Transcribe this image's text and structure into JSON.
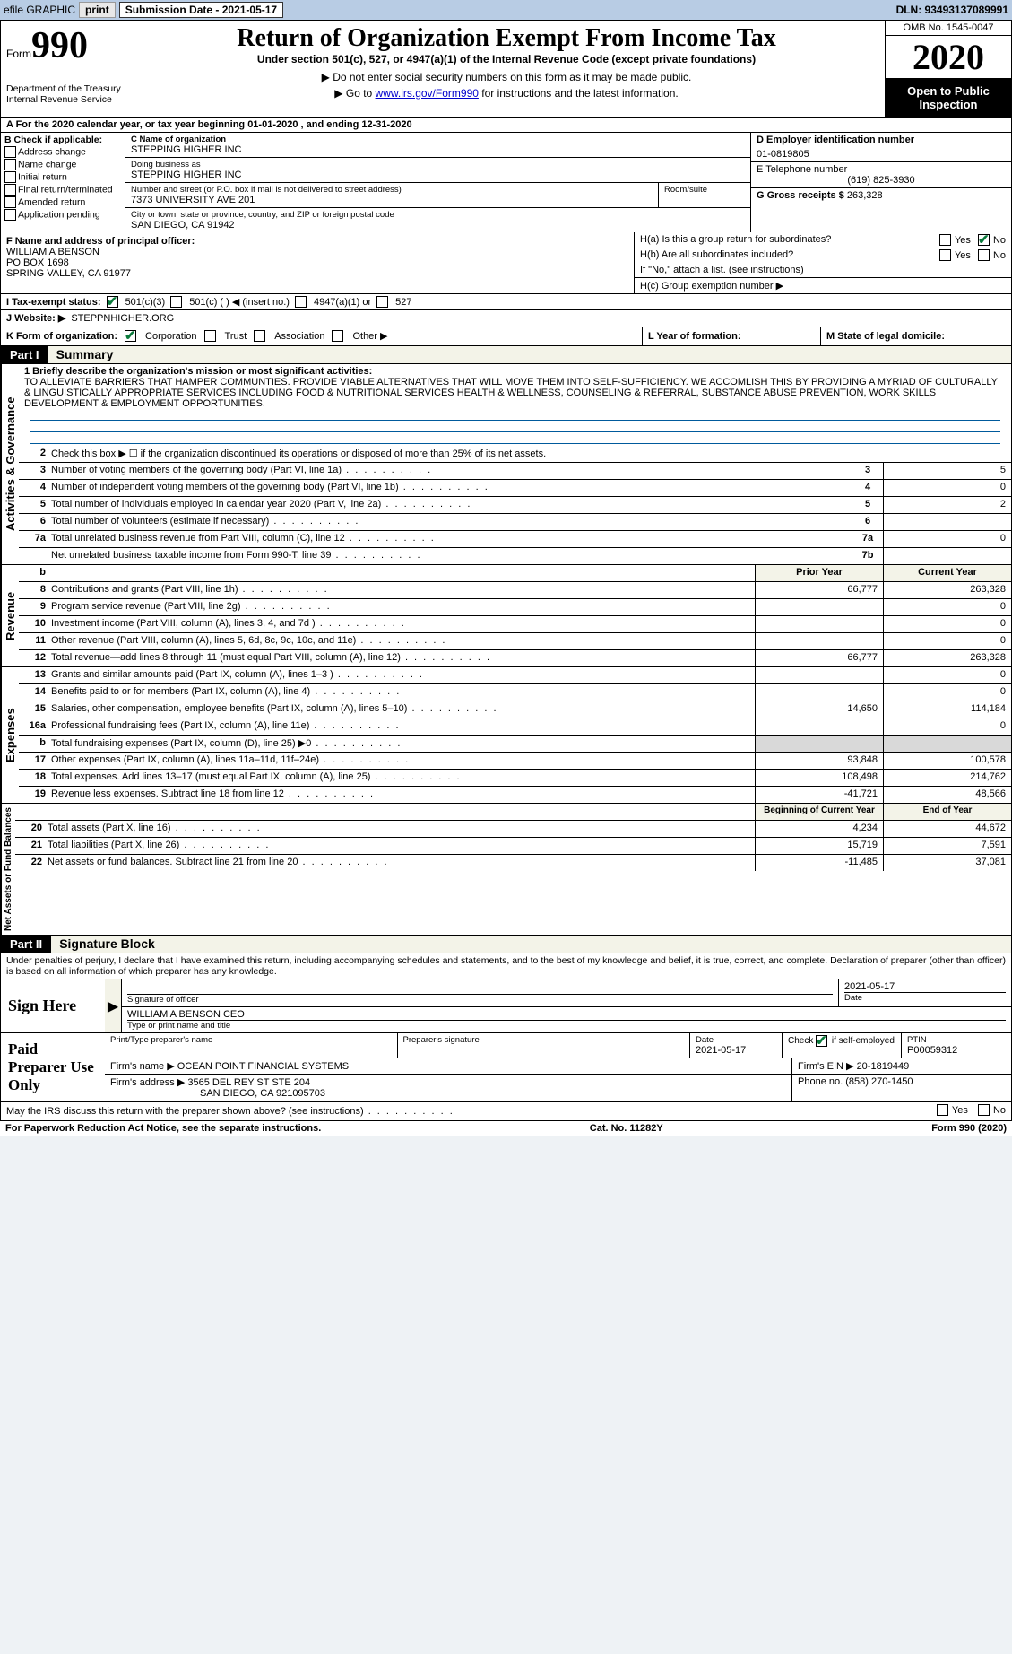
{
  "topbar": {
    "efile_label": "efile GRAPHIC",
    "print_btn": "print",
    "submission_label": "Submission Date - 2021-05-17",
    "dln_label": "DLN: 93493137089991"
  },
  "header": {
    "form_label": "Form",
    "form_number": "990",
    "dept": "Department of the Treasury\nInternal Revenue Service",
    "title": "Return of Organization Exempt From Income Tax",
    "subtitle": "Under section 501(c), 527, or 4947(a)(1) of the Internal Revenue Code (except private foundations)",
    "note1": "▶ Do not enter social security numbers on this form as it may be made public.",
    "note2_pre": "▶ Go to ",
    "note2_link": "www.irs.gov/Form990",
    "note2_post": " for instructions and the latest information.",
    "omb": "OMB No. 1545-0047",
    "year": "2020",
    "inspection": "Open to Public Inspection"
  },
  "row_a": "A  For the 2020 calendar year, or tax year beginning 01-01-2020    , and ending 12-31-2020",
  "section_b": {
    "title": "B Check if applicable:",
    "items": [
      "Address change",
      "Name change",
      "Initial return",
      "Final return/terminated",
      "Amended return",
      "Application pending"
    ]
  },
  "section_c": {
    "name_label": "C Name of organization",
    "name": "STEPPING HIGHER INC",
    "dba_label": "Doing business as",
    "dba": "STEPPING HIGHER INC",
    "street_label": "Number and street (or P.O. box if mail is not delivered to street address)",
    "street": "7373 UNIVERSITY AVE 201",
    "room_label": "Room/suite",
    "city_label": "City or town, state or province, country, and ZIP or foreign postal code",
    "city": "SAN DIEGO, CA  91942"
  },
  "section_d": {
    "ein_label": "D Employer identification number",
    "ein": "01-0819805",
    "phone_label": "E Telephone number",
    "phone": "(619) 825-3930",
    "receipts_label": "G Gross receipts $",
    "receipts": "263,328"
  },
  "section_f": {
    "label": "F  Name and address of principal officer:",
    "name": "WILLIAM A BENSON",
    "po": "PO BOX 1698",
    "city": "SPRING VALLEY, CA  91977"
  },
  "section_h": {
    "ha": "H(a)  Is this a group return for subordinates?",
    "hb": "H(b)  Are all subordinates included?",
    "hb_note": "If \"No,\" attach a list. (see instructions)",
    "hc": "H(c)  Group exemption number ▶",
    "yes": "Yes",
    "no": "No"
  },
  "row_i": {
    "label": "I  Tax-exempt status:",
    "opts": [
      "501(c)(3)",
      "501(c) (   ) ◀ (insert no.)",
      "4947(a)(1) or",
      "527"
    ]
  },
  "row_j": {
    "label": "J  Website: ▶",
    "val": "STEPPNHIGHER.ORG"
  },
  "row_k": {
    "label": "K Form of organization:",
    "opts": [
      "Corporation",
      "Trust",
      "Association",
      "Other ▶"
    ]
  },
  "row_l": {
    "label": "L Year of formation:"
  },
  "row_m": {
    "label": "M State of legal domicile:"
  },
  "part1": {
    "header": "Part I",
    "title": "Summary",
    "q1_label": "1  Briefly describe the organization's mission or most significant activities:",
    "mission": "TO ALLEVIATE BARRIERS THAT HAMPER COMMUNTIES. PROVIDE VIABLE ALTERNATIVES THAT WILL MOVE THEM INTO SELF-SUFFICIENCY. WE ACCOMLISH THIS BY PROVIDING A MYRIAD OF CULTURALLY & LINGUISTICALLY APPROPRIATE SERVICES INCLUDING FOOD & NUTRITIONAL SERVICES HEALTH & WELLNESS, COUNSELING & REFERRAL, SUBSTANCE ABUSE PREVENTION, WORK SKILLS DEVELOPMENT & EMPLOYMENT OPPORTUNITIES.",
    "q2": "Check this box ▶ ☐ if the organization discontinued its operations or disposed of more than 25% of its net assets.",
    "lines_ag": [
      {
        "n": "3",
        "t": "Number of voting members of the governing body (Part VI, line 1a)",
        "box": "3",
        "v": "5"
      },
      {
        "n": "4",
        "t": "Number of independent voting members of the governing body (Part VI, line 1b)",
        "box": "4",
        "v": "0"
      },
      {
        "n": "5",
        "t": "Total number of individuals employed in calendar year 2020 (Part V, line 2a)",
        "box": "5",
        "v": "2"
      },
      {
        "n": "6",
        "t": "Total number of volunteers (estimate if necessary)",
        "box": "6",
        "v": ""
      },
      {
        "n": "7a",
        "t": "Total unrelated business revenue from Part VIII, column (C), line 12",
        "box": "7a",
        "v": "0"
      },
      {
        "n": "",
        "t": "Net unrelated business taxable income from Form 990-T, line 39",
        "box": "7b",
        "v": ""
      }
    ],
    "hdr_b": "b",
    "prior": "Prior Year",
    "current": "Current Year",
    "revenue": [
      {
        "n": "8",
        "t": "Contributions and grants (Part VIII, line 1h)",
        "p": "66,777",
        "c": "263,328"
      },
      {
        "n": "9",
        "t": "Program service revenue (Part VIII, line 2g)",
        "p": "",
        "c": "0"
      },
      {
        "n": "10",
        "t": "Investment income (Part VIII, column (A), lines 3, 4, and 7d )",
        "p": "",
        "c": "0"
      },
      {
        "n": "11",
        "t": "Other revenue (Part VIII, column (A), lines 5, 6d, 8c, 9c, 10c, and 11e)",
        "p": "",
        "c": "0"
      },
      {
        "n": "12",
        "t": "Total revenue—add lines 8 through 11 (must equal Part VIII, column (A), line 12)",
        "p": "66,777",
        "c": "263,328"
      }
    ],
    "expenses": [
      {
        "n": "13",
        "t": "Grants and similar amounts paid (Part IX, column (A), lines 1–3 )",
        "p": "",
        "c": "0"
      },
      {
        "n": "14",
        "t": "Benefits paid to or for members (Part IX, column (A), line 4)",
        "p": "",
        "c": "0"
      },
      {
        "n": "15",
        "t": "Salaries, other compensation, employee benefits (Part IX, column (A), lines 5–10)",
        "p": "14,650",
        "c": "114,184"
      },
      {
        "n": "16a",
        "t": "Professional fundraising fees (Part IX, column (A), line 11e)",
        "p": "",
        "c": "0"
      },
      {
        "n": "b",
        "t": "Total fundraising expenses (Part IX, column (D), line 25) ▶0",
        "p": "grey",
        "c": "grey"
      },
      {
        "n": "17",
        "t": "Other expenses (Part IX, column (A), lines 11a–11d, 11f–24e)",
        "p": "93,848",
        "c": "100,578"
      },
      {
        "n": "18",
        "t": "Total expenses. Add lines 13–17 (must equal Part IX, column (A), line 25)",
        "p": "108,498",
        "c": "214,762"
      },
      {
        "n": "19",
        "t": "Revenue less expenses. Subtract line 18 from line 12",
        "p": "-41,721",
        "c": "48,566"
      }
    ],
    "na_hdr1": "Beginning of Current Year",
    "na_hdr2": "End of Year",
    "netassets": [
      {
        "n": "20",
        "t": "Total assets (Part X, line 16)",
        "p": "4,234",
        "c": "44,672"
      },
      {
        "n": "21",
        "t": "Total liabilities (Part X, line 26)",
        "p": "15,719",
        "c": "7,591"
      },
      {
        "n": "22",
        "t": "Net assets or fund balances. Subtract line 21 from line 20",
        "p": "-11,485",
        "c": "37,081"
      }
    ],
    "vlabels": {
      "ag": "Activities & Governance",
      "rev": "Revenue",
      "exp": "Expenses",
      "na": "Net Assets or Fund Balances"
    }
  },
  "part2": {
    "header": "Part II",
    "title": "Signature Block",
    "declaration": "Under penalties of perjury, I declare that I have examined this return, including accompanying schedules and statements, and to the best of my knowledge and belief, it is true, correct, and complete. Declaration of preparer (other than officer) is based on all information of which preparer has any knowledge.",
    "sign_here": "Sign Here",
    "sig_of_officer": "Signature of officer",
    "date": "Date",
    "sig_date": "2021-05-17",
    "officer_name": "WILLIAM A BENSON  CEO",
    "type_name": "Type or print name and title",
    "paid": "Paid Preparer Use Only",
    "print_name_label": "Print/Type preparer's name",
    "prep_sig_label": "Preparer's signature",
    "date_label": "Date",
    "prep_date": "2021-05-17",
    "check_label": "Check ☑ if self-employed",
    "ptin_label": "PTIN",
    "ptin": "P00059312",
    "firm_name_label": "Firm's name    ▶",
    "firm_name": "OCEAN POINT FINANCIAL SYSTEMS",
    "firm_ein_label": "Firm's EIN ▶",
    "firm_ein": "20-1819449",
    "firm_addr_label": "Firm's address ▶",
    "firm_addr": "3565 DEL REY ST STE 204",
    "firm_city": "SAN DIEGO, CA  921095703",
    "firm_phone_label": "Phone no.",
    "firm_phone": "(858) 270-1450",
    "discuss": "May the IRS discuss this return with the preparer shown above? (see instructions)"
  },
  "footer": {
    "left": "For Paperwork Reduction Act Notice, see the separate instructions.",
    "mid": "Cat. No. 11282Y",
    "right": "Form 990 (2020)"
  }
}
